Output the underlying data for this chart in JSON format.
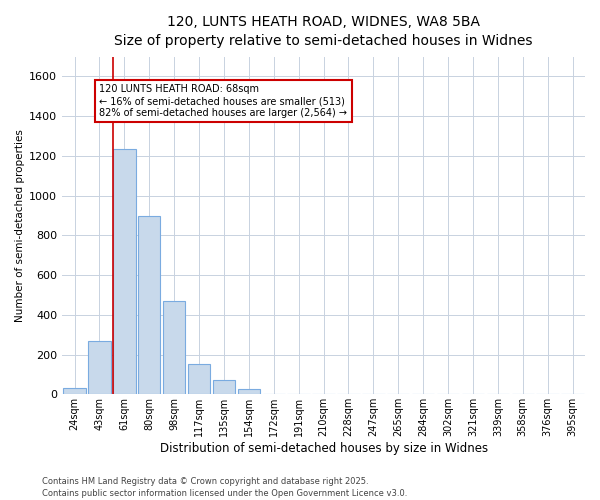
{
  "title_line1": "120, LUNTS HEATH ROAD, WIDNES, WA8 5BA",
  "title_line2": "Size of property relative to semi-detached houses in Widnes",
  "xlabel": "Distribution of semi-detached houses by size in Widnes",
  "ylabel": "Number of semi-detached properties",
  "categories": [
    "24sqm",
    "43sqm",
    "61sqm",
    "80sqm",
    "98sqm",
    "117sqm",
    "135sqm",
    "154sqm",
    "172sqm",
    "191sqm",
    "210sqm",
    "228sqm",
    "247sqm",
    "265sqm",
    "284sqm",
    "302sqm",
    "321sqm",
    "339sqm",
    "358sqm",
    "376sqm",
    "395sqm"
  ],
  "values": [
    30,
    270,
    1235,
    900,
    470,
    150,
    70,
    25,
    0,
    0,
    0,
    0,
    0,
    0,
    0,
    0,
    0,
    0,
    0,
    0,
    0
  ],
  "bar_color": "#c8d9eb",
  "bar_edge_color": "#7aabe0",
  "annotation_text": "120 LUNTS HEATH ROAD: 68sqm\n← 16% of semi-detached houses are smaller (513)\n82% of semi-detached houses are larger (2,564) →",
  "box_edge_color": "#cc0000",
  "red_line_color": "#cc0000",
  "ylim": [
    0,
    1700
  ],
  "yticks": [
    0,
    200,
    400,
    600,
    800,
    1000,
    1200,
    1400,
    1600
  ],
  "grid_color": "#c8d2e0",
  "plot_bg_color": "#ffffff",
  "fig_bg_color": "#ffffff",
  "footer_line1": "Contains HM Land Registry data © Crown copyright and database right 2025.",
  "footer_line2": "Contains public sector information licensed under the Open Government Licence v3.0."
}
